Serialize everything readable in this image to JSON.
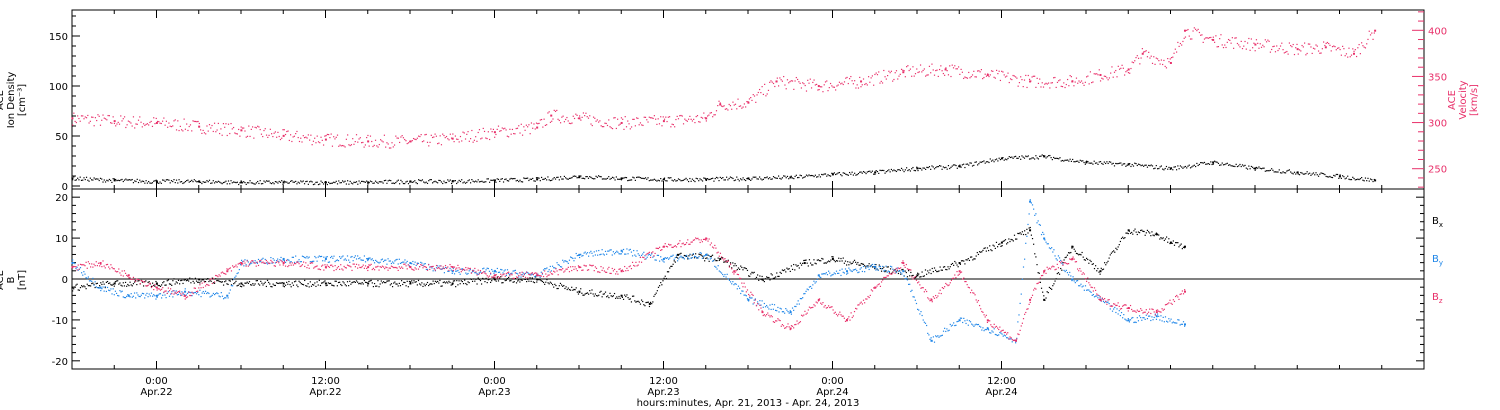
{
  "colors": {
    "black": "#000000",
    "red": "#e8306a",
    "blue": "#1f86e8"
  },
  "chart_data": [
    {
      "type": "scatter",
      "panel": "top",
      "title": "",
      "ylabel_left": [
        "ACE",
        "Ion Density",
        "[cm⁻³]"
      ],
      "ylabel_right": [
        "ACE",
        "Velocity",
        "[km/s]"
      ],
      "xlim_hours": [
        -6,
        90
      ],
      "ylim_left": [
        -3,
        176
      ],
      "ylim_right": [
        228,
        422
      ],
      "left_ticks": [
        "0",
        "50",
        "100",
        "150"
      ],
      "right_ticks": [
        "250",
        "300",
        "350",
        "400"
      ],
      "series": [
        {
          "name": "",
          "axis": "left",
          "color": "#000000",
          "points": [
            [
              -6,
              8
            ],
            [
              -3,
              6
            ],
            [
              0,
              5
            ],
            [
              3,
              5
            ],
            [
              6,
              4
            ],
            [
              9,
              4
            ],
            [
              12,
              4
            ],
            [
              15,
              4
            ],
            [
              18,
              5
            ],
            [
              21,
              5
            ],
            [
              24,
              6
            ],
            [
              27,
              7
            ],
            [
              30,
              10
            ],
            [
              33,
              8
            ],
            [
              36,
              7
            ],
            [
              39,
              7
            ],
            [
              42,
              8
            ],
            [
              45,
              9
            ],
            [
              48,
              12
            ],
            [
              51,
              14
            ],
            [
              54,
              18
            ],
            [
              57,
              20
            ],
            [
              60,
              28
            ],
            [
              63,
              30
            ],
            [
              66,
              24
            ],
            [
              69,
              22
            ],
            [
              72,
              18
            ],
            [
              75,
              24
            ],
            [
              78,
              18
            ],
            [
              81,
              14
            ],
            [
              84,
              10
            ],
            [
              86.5,
              6
            ]
          ]
        },
        {
          "name": "",
          "axis": "right",
          "color": "#e8306a",
          "points": [
            [
              -6,
              305
            ],
            [
              -3,
              302
            ],
            [
              0,
              300
            ],
            [
              3,
              296
            ],
            [
              6,
              292
            ],
            [
              9,
              286
            ],
            [
              12,
              282
            ],
            [
              15,
              280
            ],
            [
              18,
              280
            ],
            [
              21,
              283
            ],
            [
              24,
              290
            ],
            [
              27,
              295
            ],
            [
              28,
              308
            ],
            [
              30,
              305
            ],
            [
              33,
              300
            ],
            [
              36,
              302
            ],
            [
              39,
              305
            ],
            [
              40,
              320
            ],
            [
              42,
              322
            ],
            [
              44,
              345
            ],
            [
              47,
              340
            ],
            [
              50,
              345
            ],
            [
              53,
              355
            ],
            [
              56,
              358
            ],
            [
              59,
              352
            ],
            [
              62,
              345
            ],
            [
              65,
              345
            ],
            [
              67,
              352
            ],
            [
              69,
              358
            ],
            [
              70,
              375
            ],
            [
              72,
              365
            ],
            [
              73,
              400
            ],
            [
              75,
              390
            ],
            [
              78,
              385
            ],
            [
              81,
              380
            ],
            [
              83,
              382
            ],
            [
              85,
              375
            ],
            [
              86.5,
              400
            ]
          ]
        }
      ]
    },
    {
      "type": "scatter",
      "panel": "bottom",
      "title": "",
      "ylabel_left": [
        "ACE",
        "B",
        "[nT]"
      ],
      "xlim_hours": [
        -6,
        90
      ],
      "ylim": [
        -22,
        22
      ],
      "y_ticks": [
        "-20",
        "-10",
        "0",
        "10",
        "20"
      ],
      "xlabel": "hours:minutes, Apr. 21, 2013 - Apr. 24, 2013",
      "x_tick_times": [
        "0:00",
        "12:00",
        "0:00",
        "12:00",
        "0:00",
        "12:00"
      ],
      "x_tick_dates": [
        "Apr.22",
        "Apr.22",
        "Apr.23",
        "Apr.23",
        "Apr.24",
        "Apr.24"
      ],
      "x_tick_hours": [
        0,
        12,
        24,
        36,
        48,
        60
      ],
      "series": [
        {
          "name": "B",
          "subscript": "x",
          "color": "#000000",
          "points": [
            [
              -6,
              -2
            ],
            [
              -3,
              -1
            ],
            [
              0,
              -1
            ],
            [
              3,
              0
            ],
            [
              6,
              -1
            ],
            [
              9,
              -1
            ],
            [
              12,
              -1
            ],
            [
              15,
              -1
            ],
            [
              18,
              -1
            ],
            [
              21,
              -1
            ],
            [
              24,
              0
            ],
            [
              27,
              0
            ],
            [
              30,
              -3
            ],
            [
              33,
              -4
            ],
            [
              35,
              -6
            ],
            [
              37,
              6
            ],
            [
              40,
              5
            ],
            [
              43,
              0
            ],
            [
              46,
              4
            ],
            [
              48,
              5
            ],
            [
              51,
              3
            ],
            [
              54,
              1
            ],
            [
              57,
              4
            ],
            [
              60,
              9
            ],
            [
              62,
              12
            ],
            [
              63,
              -5
            ],
            [
              65,
              8
            ],
            [
              67,
              2
            ],
            [
              69,
              12
            ],
            [
              71,
              11
            ],
            [
              72,
              9
            ],
            [
              73,
              8
            ]
          ]
        },
        {
          "name": "B",
          "subscript": "y",
          "color": "#1f86e8",
          "points": [
            [
              -6,
              4
            ],
            [
              -4,
              -2
            ],
            [
              -2,
              -4
            ],
            [
              0,
              -4
            ],
            [
              2,
              -3
            ],
            [
              5,
              -4
            ],
            [
              6,
              4
            ],
            [
              9,
              5
            ],
            [
              12,
              5
            ],
            [
              15,
              5
            ],
            [
              18,
              4
            ],
            [
              21,
              2
            ],
            [
              24,
              2
            ],
            [
              27,
              1
            ],
            [
              30,
              6
            ],
            [
              33,
              7
            ],
            [
              36,
              5
            ],
            [
              39,
              6
            ],
            [
              42,
              -5
            ],
            [
              45,
              -8
            ],
            [
              47,
              1
            ],
            [
              49,
              2
            ],
            [
              51,
              3
            ],
            [
              53,
              2
            ],
            [
              55,
              -15
            ],
            [
              57,
              -10
            ],
            [
              59,
              -12
            ],
            [
              61,
              -15
            ],
            [
              62,
              19
            ],
            [
              63,
              10
            ],
            [
              65,
              0
            ],
            [
              67,
              -5
            ],
            [
              69,
              -10
            ],
            [
              71,
              -9
            ],
            [
              73,
              -11
            ]
          ]
        },
        {
          "name": "B",
          "subscript": "z",
          "color": "#e8306a",
          "points": [
            [
              -6,
              3
            ],
            [
              -4,
              4
            ],
            [
              -2,
              1
            ],
            [
              0,
              -2
            ],
            [
              2,
              -4
            ],
            [
              5,
              2
            ],
            [
              6,
              4
            ],
            [
              9,
              4
            ],
            [
              12,
              3
            ],
            [
              15,
              3
            ],
            [
              18,
              3
            ],
            [
              21,
              3
            ],
            [
              24,
              1
            ],
            [
              27,
              1
            ],
            [
              30,
              3
            ],
            [
              33,
              2
            ],
            [
              36,
              8
            ],
            [
              39,
              10
            ],
            [
              41,
              2
            ],
            [
              43,
              -8
            ],
            [
              45,
              -12
            ],
            [
              47,
              -5
            ],
            [
              49,
              -10
            ],
            [
              51,
              -2
            ],
            [
              53,
              4
            ],
            [
              55,
              -5
            ],
            [
              57,
              2
            ],
            [
              59,
              -10
            ],
            [
              61,
              -15
            ],
            [
              62,
              -5
            ],
            [
              63,
              2
            ],
            [
              65,
              5
            ],
            [
              67,
              -5
            ],
            [
              69,
              -7
            ],
            [
              71,
              -8
            ],
            [
              73,
              -3
            ]
          ]
        }
      ]
    }
  ]
}
